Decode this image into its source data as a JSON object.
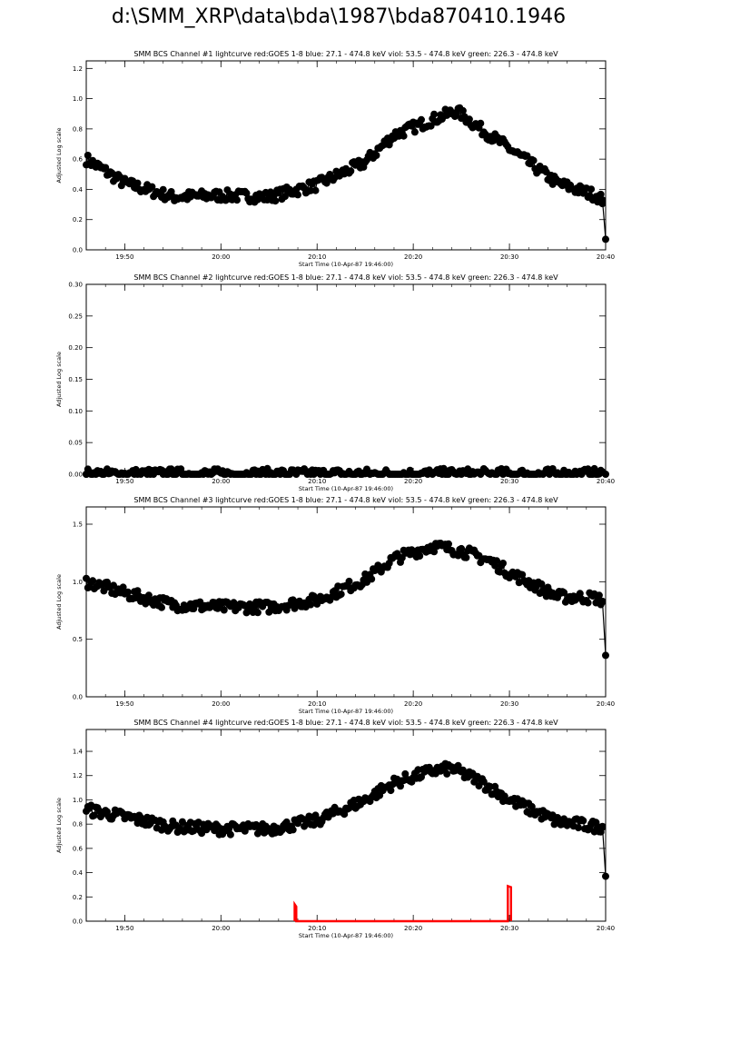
{
  "page_title": "d:\\SMM_XRP\\data\\bda\\1987\\bda870410.1946",
  "colors": {
    "axes": "#000000",
    "data": "#000000",
    "goes": "#ff0000"
  },
  "chart_data": [
    {
      "type": "line",
      "title": "SMM BCS Channel #1 lightcurve  red:GOES 1-8  blue: 27.1 - 474.8 keV  viol: 53.5 - 474.8 keV  green: 226.3 - 474.8 keV",
      "xlabel": "Start Time (10-Apr-87 19:46:00)",
      "ylabel": "Adjusted Log scale",
      "xlim": [
        "19:46",
        "20:40"
      ],
      "ylim": [
        0,
        1.25
      ],
      "xticks": [
        "19:50",
        "20:00",
        "20:10",
        "20:20",
        "20:30",
        "20:40"
      ],
      "yticks": [
        "0.0",
        "0.2",
        "0.4",
        "0.6",
        "0.8",
        "1.0",
        "1.2"
      ],
      "series": [
        {
          "marker": "circle",
          "line": true,
          "anchors": [
            [
              "19:46:00",
              0.6
            ],
            [
              "19:50:00",
              0.44
            ],
            [
              "19:55:00",
              0.35
            ],
            [
              "20:00:00",
              0.36
            ],
            [
              "20:05:00",
              0.35
            ],
            [
              "20:10:00",
              0.43
            ],
            [
              "20:15:00",
              0.58
            ],
            [
              "20:18:00",
              0.76
            ],
            [
              "20:22:00",
              0.86
            ],
            [
              "20:24:30",
              0.92
            ],
            [
              "20:27:00",
              0.8
            ],
            [
              "20:30:00",
              0.67
            ],
            [
              "20:35:00",
              0.44
            ],
            [
              "20:39:00",
              0.36
            ],
            [
              "20:39:40",
              0.33
            ],
            [
              "20:40:00",
              0.07
            ]
          ]
        }
      ]
    },
    {
      "type": "line",
      "title": "SMM BCS Channel #2 lightcurve  red:GOES 1-8  blue: 27.1 - 474.8 keV  viol: 53.5 - 474.8 keV  green: 226.3 - 474.8 keV",
      "xlabel": "Start Time (10-Apr-87 19:46:00)",
      "ylabel": "Adjusted Log scale",
      "xlim": [
        "19:46",
        "20:40"
      ],
      "ylim": [
        0,
        0.3
      ],
      "xticks": [
        "19:50",
        "20:00",
        "20:10",
        "20:20",
        "20:30",
        "20:40"
      ],
      "yticks": [
        "0.00",
        "0.05",
        "0.10",
        "0.15",
        "0.20",
        "0.25",
        "0.30"
      ],
      "series": [
        {
          "marker": "circle",
          "line": true,
          "anchors": [
            [
              "19:46:00",
              0.0
            ],
            [
              "20:40:00",
              0.0
            ]
          ]
        }
      ]
    },
    {
      "type": "line",
      "title": "SMM BCS Channel #3 lightcurve  red:GOES 1-8  blue: 27.1 - 474.8 keV  viol: 53.5 - 474.8 keV  green: 226.3 - 474.8 keV",
      "xlabel": "Start Time (10-Apr-87 19:46:00)",
      "ylabel": "Adjusted Log scale",
      "xlim": [
        "19:46",
        "20:40"
      ],
      "ylim": [
        0,
        1.65
      ],
      "xticks": [
        "19:50",
        "20:00",
        "20:10",
        "20:20",
        "20:30",
        "20:40"
      ],
      "yticks": [
        "0.0",
        "0.5",
        "1.0",
        "1.5"
      ],
      "series": [
        {
          "marker": "circle",
          "line": true,
          "anchors": [
            [
              "19:46:00",
              1.0
            ],
            [
              "19:50:00",
              0.9
            ],
            [
              "19:55:00",
              0.8
            ],
            [
              "20:00:00",
              0.78
            ],
            [
              "20:05:00",
              0.78
            ],
            [
              "20:10:00",
              0.84
            ],
            [
              "20:15:00",
              1.02
            ],
            [
              "20:18:00",
              1.2
            ],
            [
              "20:22:00",
              1.31
            ],
            [
              "20:25:00",
              1.27
            ],
            [
              "20:28:00",
              1.18
            ],
            [
              "20:30:00",
              1.08
            ],
            [
              "20:35:00",
              0.87
            ],
            [
              "20:39:00",
              0.86
            ],
            [
              "20:39:40",
              0.83
            ],
            [
              "20:40:00",
              0.36
            ]
          ]
        }
      ]
    },
    {
      "type": "line",
      "title": "SMM BCS Channel #4 lightcurve  red:GOES 1-8  blue: 27.1 - 474.8 keV  viol: 53.5 - 474.8 keV  green: 226.3 - 474.8 keV",
      "xlabel": "Start Time (10-Apr-87 19:46:00)",
      "ylabel": "Adjusted Log scale",
      "xlim": [
        "19:46",
        "20:40"
      ],
      "ylim": [
        0,
        1.58
      ],
      "xticks": [
        "19:50",
        "20:00",
        "20:10",
        "20:20",
        "20:30",
        "20:40"
      ],
      "yticks": [
        "0.0",
        "0.2",
        "0.4",
        "0.6",
        "0.8",
        "1.0",
        "1.2",
        "1.4"
      ],
      "series": [
        {
          "marker": "circle",
          "line": true,
          "anchors": [
            [
              "19:46:00",
              0.92
            ],
            [
              "19:50:00",
              0.86
            ],
            [
              "19:55:00",
              0.78
            ],
            [
              "20:00:00",
              0.76
            ],
            [
              "20:05:00",
              0.76
            ],
            [
              "20:10:00",
              0.83
            ],
            [
              "20:15:00",
              1.0
            ],
            [
              "20:18:00",
              1.14
            ],
            [
              "20:22:00",
              1.24
            ],
            [
              "20:24:00",
              1.26
            ],
            [
              "20:27:00",
              1.15
            ],
            [
              "20:30:00",
              1.0
            ],
            [
              "20:35:00",
              0.82
            ],
            [
              "20:39:00",
              0.78
            ],
            [
              "20:39:40",
              0.78
            ],
            [
              "20:40:00",
              0.37
            ]
          ]
        },
        {
          "color": "red",
          "marker": "none",
          "line": true,
          "anchors": [
            [
              "20:07:40",
              0.0
            ],
            [
              "20:07:40",
              0.14
            ],
            [
              "20:07:50",
              0.12
            ],
            [
              "20:07:50",
              0.0
            ],
            [
              "20:29:50",
              0.0
            ],
            [
              "20:29:50",
              0.29
            ],
            [
              "20:30:10",
              0.28
            ],
            [
              "20:30:10",
              0.0
            ]
          ]
        }
      ]
    }
  ]
}
